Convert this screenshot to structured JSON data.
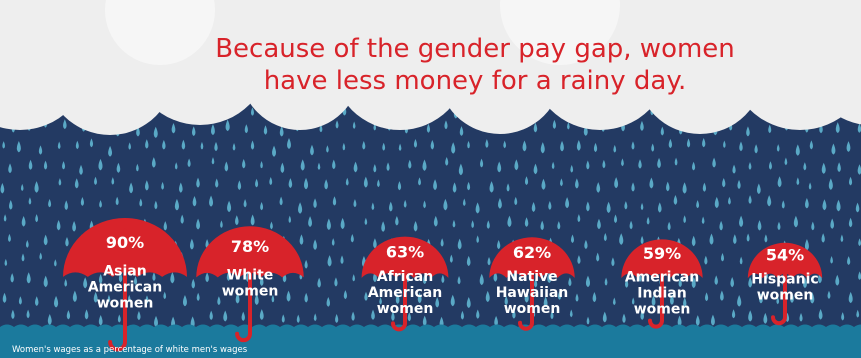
{
  "title_lines": [
    "Because of the gender pay gap, women",
    "have less money for a rainy day."
  ],
  "footnote": "Women's wages as a percentage of white men's wages",
  "colors": {
    "umbrella_red": "#d8232a",
    "sky_navy": "#233a63",
    "rain_drop": "#5aa9c6",
    "cloud": "#eeeeee",
    "water": "#1b7a9d",
    "title_red": "#d8232a"
  },
  "chart_data": {
    "type": "bar",
    "title": "Because of the gender pay gap, women have less money for a rainy day.",
    "ylabel": "Women's wages as a percentage of white men's wages",
    "categories": [
      "Asian American women",
      "White women",
      "African American women",
      "Native Hawaiian women",
      "American Indian women",
      "Hispanic women"
    ],
    "values": [
      90,
      78,
      63,
      62,
      59,
      54
    ],
    "value_labels": [
      "90%",
      "78%",
      "63%",
      "62%",
      "59%",
      "54%"
    ],
    "label_lines": [
      [
        "Asian",
        "American",
        "women"
      ],
      [
        "White",
        "women"
      ],
      [
        "African",
        "American",
        "women"
      ],
      [
        "Native",
        "Hawaiian",
        "women"
      ],
      [
        "American",
        "Indian",
        "women"
      ],
      [
        "Hispanic",
        "women"
      ]
    ],
    "unit": "%",
    "mark": "umbrella"
  }
}
